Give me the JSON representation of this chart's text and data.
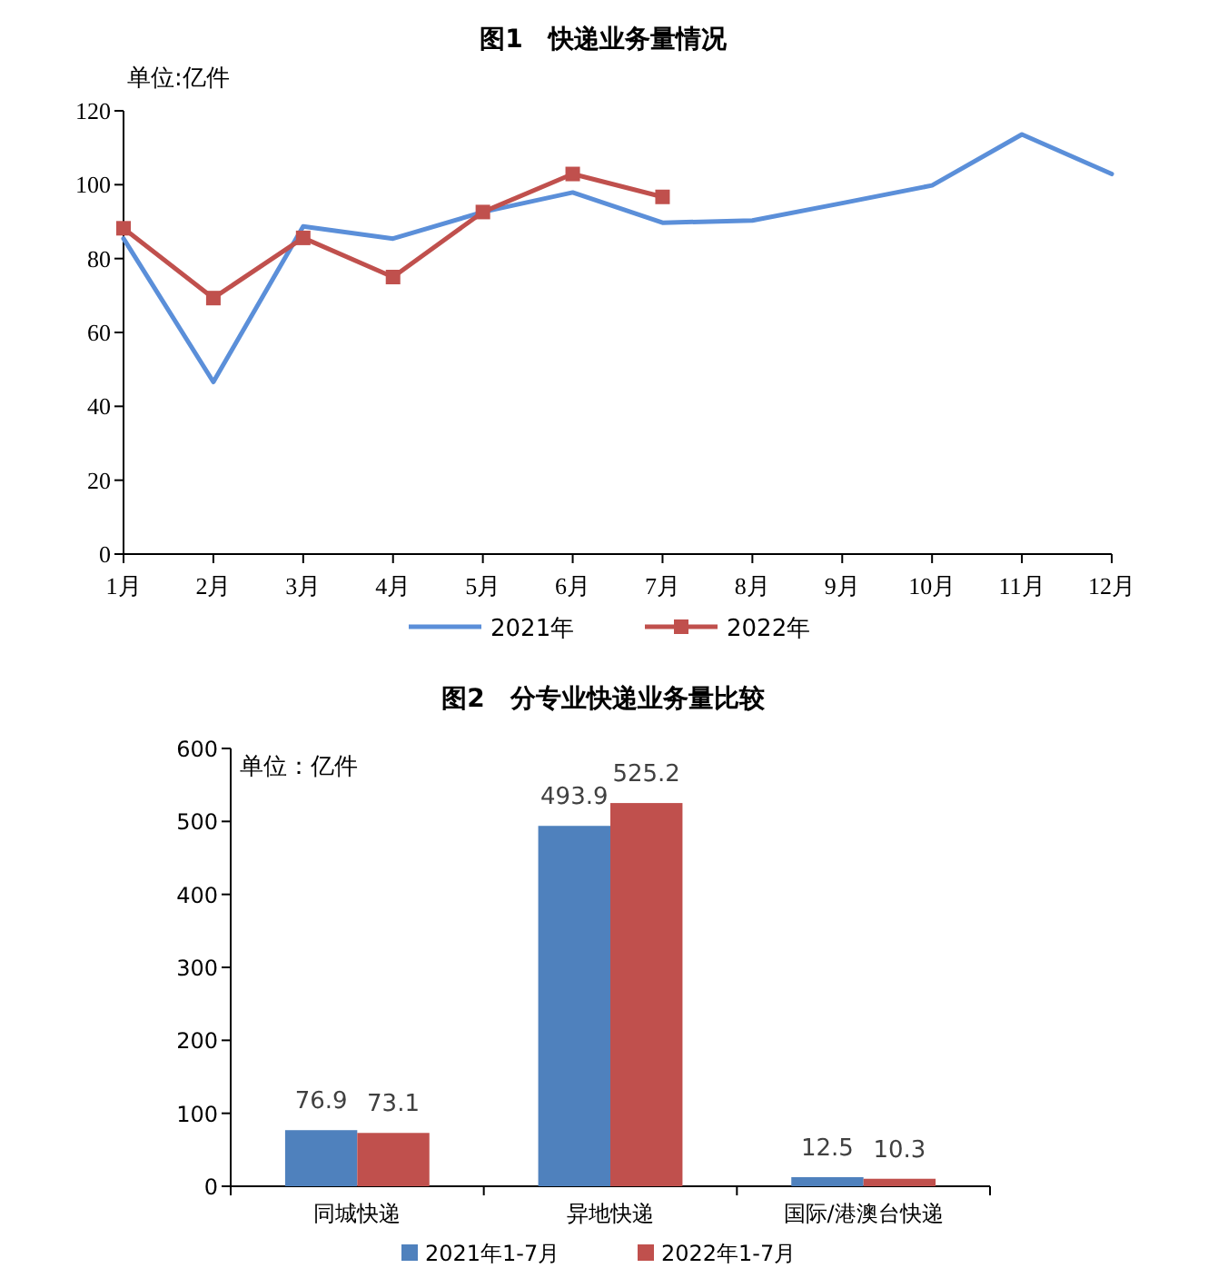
{
  "chart_data": [
    {
      "type": "line",
      "title": "图1　快递业务量情况",
      "categories": [
        "1月",
        "2月",
        "3月",
        "4月",
        "5月",
        "6月",
        "7月",
        "8月",
        "9月",
        "10月",
        "11月",
        "12月"
      ],
      "series": [
        {
          "name": "2021年",
          "color": "#5b8fd9",
          "values": [
            85.4,
            46.6,
            88.7,
            85.4,
            92.6,
            97.9,
            89.7,
            90.3,
            95.0,
            99.8,
            113.6,
            102.9
          ]
        },
        {
          "name": "2022年",
          "color": "#c0504d",
          "marker": "square",
          "values": [
            88.2,
            69.3,
            85.6,
            75.0,
            92.6,
            102.9,
            96.7,
            null,
            null,
            null,
            null,
            null
          ]
        }
      ],
      "ylim": [
        0,
        120
      ],
      "yticks": [
        0,
        20,
        40,
        60,
        80,
        100,
        120
      ],
      "legend": "bottom",
      "annotations": [
        "单位:亿件"
      ]
    },
    {
      "type": "bar",
      "title": "图2　分专业快递业务量比较",
      "categories": [
        "同城快递",
        "异地快递",
        "国际/港澳台快递"
      ],
      "series": [
        {
          "name": "2021年1-7月",
          "color": "#4f81bd",
          "values": [
            76.9,
            493.9,
            12.5
          ]
        },
        {
          "name": "2022年1-7月",
          "color": "#c0504d",
          "values": [
            73.1,
            525.2,
            10.3
          ]
        }
      ],
      "ylim": [
        0,
        600
      ],
      "yticks": [
        0,
        100,
        200,
        300,
        400,
        500,
        600
      ],
      "data_labels": true,
      "legend": "bottom",
      "annotations": [
        "单位：亿件"
      ]
    }
  ]
}
